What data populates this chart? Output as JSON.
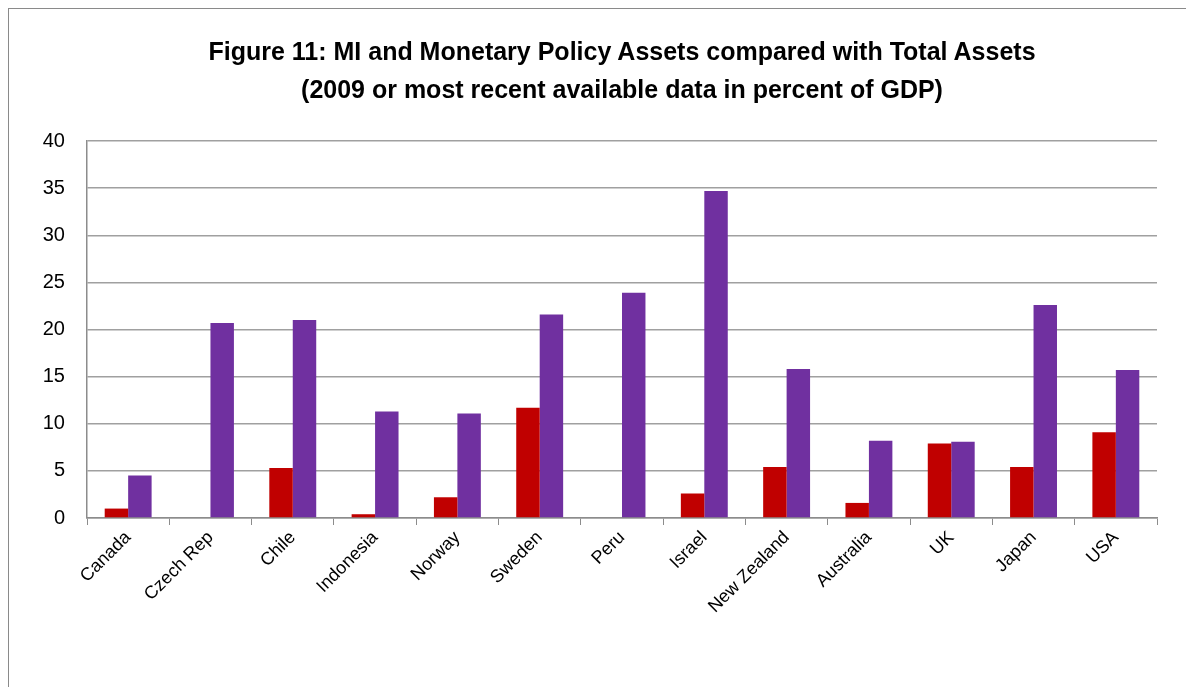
{
  "chart_data": {
    "type": "bar",
    "title": "Figure 11: MI and Monetary Policy Assets compared with Total Assets",
    "subtitle": "(2009 or most recent available data in percent of GDP)",
    "categories": [
      "Canada",
      "Czech Rep",
      "Chile",
      "Indonesia",
      "Norway",
      "Sweden",
      "Peru",
      "Israel",
      "New Zealand",
      "Australia",
      "UK",
      "Japan",
      "USA"
    ],
    "series": [
      {
        "color": "#c00000",
        "values": [
          1.0,
          null,
          5.3,
          0.4,
          2.2,
          11.7,
          null,
          2.6,
          5.4,
          1.6,
          7.9,
          5.4,
          9.1
        ]
      },
      {
        "color": "#7030a0",
        "values": [
          4.5,
          20.7,
          21.0,
          11.3,
          11.1,
          21.6,
          23.9,
          34.7,
          15.8,
          8.2,
          8.1,
          22.6,
          15.7
        ]
      }
    ],
    "ylim": [
      0,
      40
    ],
    "yticks": [
      0,
      5,
      10,
      15,
      20,
      25,
      30,
      35,
      40
    ],
    "grid": "y"
  }
}
